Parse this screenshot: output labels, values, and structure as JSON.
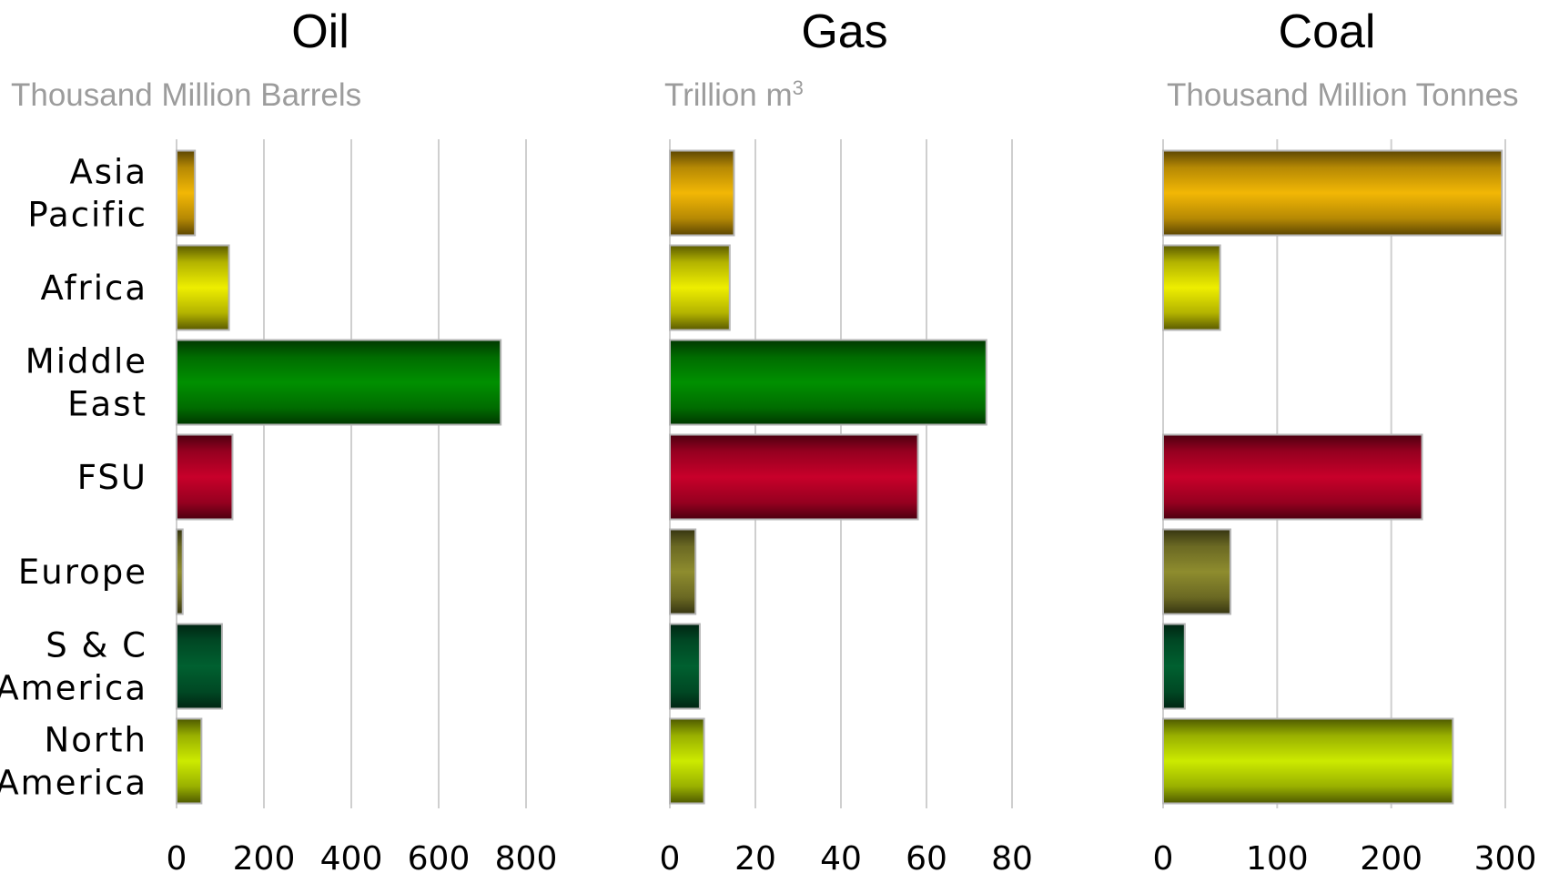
{
  "chart_data": {
    "type": "bar",
    "orientation": "horizontal",
    "categories": [
      "Asia Pacific",
      "Africa",
      "Middle East",
      "FSU",
      "Europe",
      "S & C America",
      "North America"
    ],
    "category_lines": [
      [
        "Asia",
        "Pacific"
      ],
      [
        "Africa"
      ],
      [
        "Middle",
        "East"
      ],
      [
        "FSU"
      ],
      [
        "Europe"
      ],
      [
        "S & C",
        "America"
      ],
      [
        "North",
        "America"
      ]
    ],
    "colors": [
      "#f2b705",
      "#eeee00",
      "#009000",
      "#c8002a",
      "#8e8c2e",
      "#006030",
      "#ccea00"
    ],
    "grid": true,
    "panels": [
      {
        "title": "Oil",
        "unit": "Thousand Million Barrels",
        "xlim": [
          0,
          800
        ],
        "ticks": [
          0,
          200,
          400,
          600,
          800
        ],
        "values": [
          42,
          120,
          742,
          128,
          14,
          104,
          57
        ]
      },
      {
        "title": "Gas",
        "unit_main": "Trillion m",
        "unit_sup": "3",
        "xlim": [
          0,
          80
        ],
        "ticks": [
          0,
          20,
          40,
          60,
          80
        ],
        "values": [
          15,
          14,
          74,
          58,
          6,
          7,
          8
        ]
      },
      {
        "title": "Coal",
        "unit": "Thousand Million Tonnes",
        "xlim": [
          0,
          300
        ],
        "ticks": [
          0,
          100,
          200,
          300
        ],
        "values": [
          297,
          50,
          0,
          227,
          59,
          19,
          254
        ]
      }
    ]
  }
}
